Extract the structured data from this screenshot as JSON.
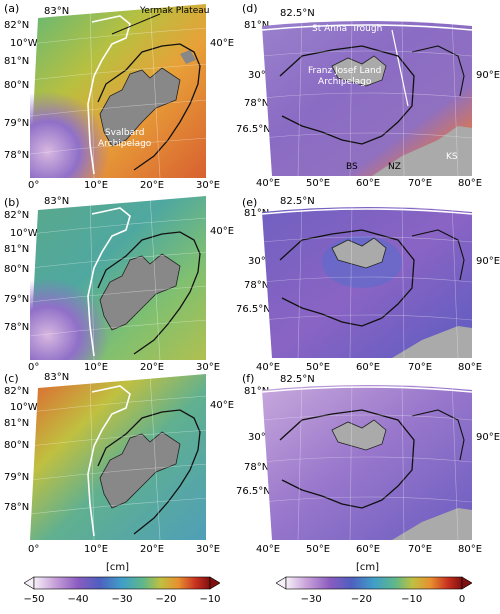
{
  "panels": [
    {
      "letter": "(a)"
    },
    {
      "letter": "(b)"
    },
    {
      "letter": "(c)"
    },
    {
      "letter": "(d)"
    },
    {
      "letter": "(e)"
    },
    {
      "letter": "(f)"
    }
  ],
  "left_labels": {
    "top_lat": "83°N",
    "lat_left": [
      "82°N",
      "10°W",
      "81°N",
      "80°N",
      "79°N",
      "78°N"
    ],
    "right_lon": "40°E",
    "bottom_lon": [
      "0°",
      "10°E",
      "20°E",
      "30°E"
    ]
  },
  "right_labels": {
    "top_lat": "82.5°N",
    "lat_left": [
      "81°N",
      "30°E",
      "78°N",
      "76.5°N"
    ],
    "right_lon": "90°E",
    "bottom_lon": [
      "40°E",
      "50°E",
      "60°E",
      "70°E",
      "80°E"
    ]
  },
  "annotations": {
    "yermak": "Yermak Plateau",
    "svalbard": "Svalbard\nArchipelago",
    "st_anna": "St Anna",
    "trough": "Trough",
    "fjl": "Franz Josef Land\nArchipelago",
    "bs": "BS",
    "nz": "NZ",
    "ks": "KS"
  },
  "colorbar_left": {
    "unit": "[cm]",
    "ticks": [
      "−50",
      "−40",
      "−30",
      "−20",
      "−10"
    ],
    "range": [
      -50,
      -10
    ]
  },
  "colorbar_right": {
    "unit": "[cm]",
    "ticks": [
      "−30",
      "−20",
      "−10",
      "0"
    ],
    "range": [
      -35,
      0
    ]
  }
}
